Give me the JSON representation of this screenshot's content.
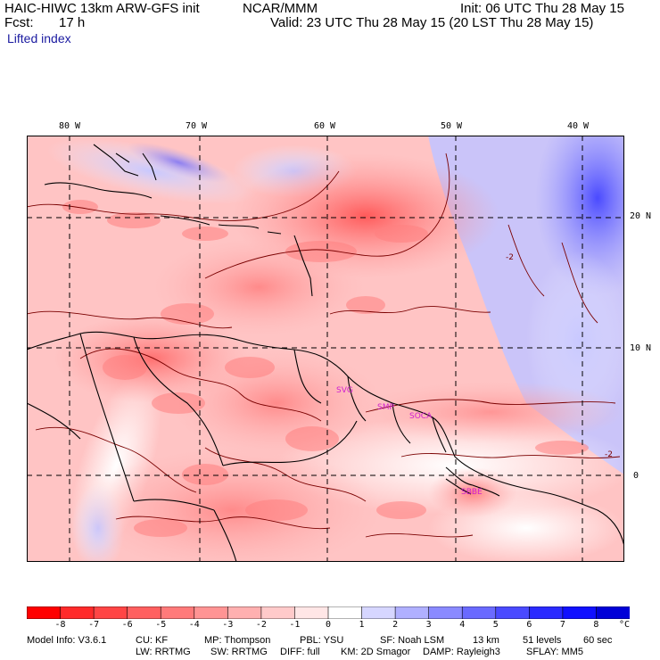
{
  "header": {
    "model": "HAIC-HIWC 13km ARW-GFS init",
    "org": "NCAR/MMM",
    "init": "Init: 06 UTC Thu 28 May 15",
    "fcst_label": "Fcst:",
    "fcst_value": "17 h",
    "valid": "Valid: 23 UTC Thu 28 May 15 (20 LST Thu 28 May 15)",
    "field": "Lifted index"
  },
  "map": {
    "lon_labels": [
      "80 W",
      "70 W",
      "60 W",
      "50 W",
      "40 W"
    ],
    "lat_labels": [
      "20 N",
      "10 N",
      "0"
    ],
    "stations": [
      "SVG",
      "SMP",
      "SOCA",
      "SBBE"
    ],
    "station_color": "#d020d0",
    "contour_label": "-2"
  },
  "colorbar": {
    "ticks": [
      "-8",
      "-7",
      "-6",
      "-5",
      "-4",
      "-3",
      "-2",
      "-1",
      "0",
      "1",
      "2",
      "3",
      "4",
      "5",
      "6",
      "7",
      "8"
    ],
    "unit": "°C",
    "colors": [
      "#ff0000",
      "#ff2a2a",
      "#ff4545",
      "#ff6060",
      "#ff7a7a",
      "#ff9494",
      "#ffb0b0",
      "#ffcaca",
      "#ffe6e6",
      "#ffffff",
      "#d6d6ff",
      "#b0b0ff",
      "#8a8aff",
      "#6a6aff",
      "#4a4aff",
      "#2a2aff",
      "#1010ff",
      "#0000d8"
    ]
  },
  "footer": {
    "model_info": "Model Info: V3.6.1",
    "cu": "CU: KF",
    "mp": "MP: Thompson",
    "pbl": "PBL: YSU",
    "sf": "SF: Noah LSM",
    "res": "13 km",
    "levels": "51 levels",
    "dt": "60 sec",
    "lw": "LW: RRTMG",
    "sw": "SW: RRTMG",
    "diff": "DIFF: full",
    "km": "KM: 2D Smagor",
    "damp": "DAMP: Rayleigh3",
    "sflay": "SFLAY: MM5"
  }
}
